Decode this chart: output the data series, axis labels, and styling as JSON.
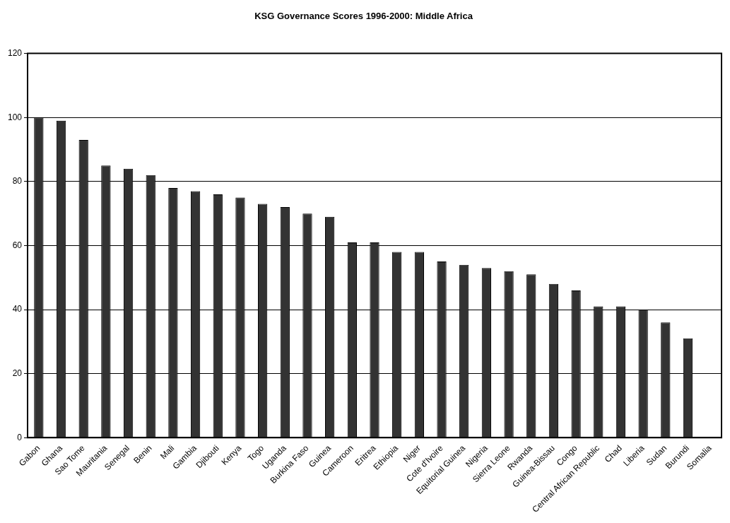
{
  "chart_data": {
    "type": "bar",
    "title": "KSG Governance Scores 1996-2000: Middle Africa",
    "categories": [
      "Gabon",
      "Ghana",
      "Sao Tome",
      "Mauritania",
      "Senegal",
      "Benin",
      "Mali",
      "Gambia",
      "Djibouti",
      "Kenya",
      "Togo",
      "Uganda",
      "Burkina Faso",
      "Guinea",
      "Cameroon",
      "Eritrea",
      "Ethiopia",
      "Niger",
      "Cote d'Ivoire",
      "Equitorial Guinea",
      "Nigeria",
      "Sierra Leone",
      "Rwanda",
      "Guinea-Bissau",
      "Congo",
      "Central African Republic",
      "Chad",
      "Liberia",
      "Sudan",
      "Burundi",
      "Somalia"
    ],
    "values": [
      100,
      99,
      93,
      85,
      84,
      82,
      78,
      77,
      76,
      75,
      73,
      72,
      70,
      69,
      61,
      61,
      58,
      58,
      55,
      54,
      53,
      52,
      51,
      48,
      46,
      41,
      41,
      40,
      36,
      31,
      0
    ],
    "color": "#333333",
    "ylim": [
      0,
      120
    ],
    "yticks": [
      0,
      20,
      40,
      60,
      80,
      100,
      120
    ],
    "grid": "y"
  }
}
